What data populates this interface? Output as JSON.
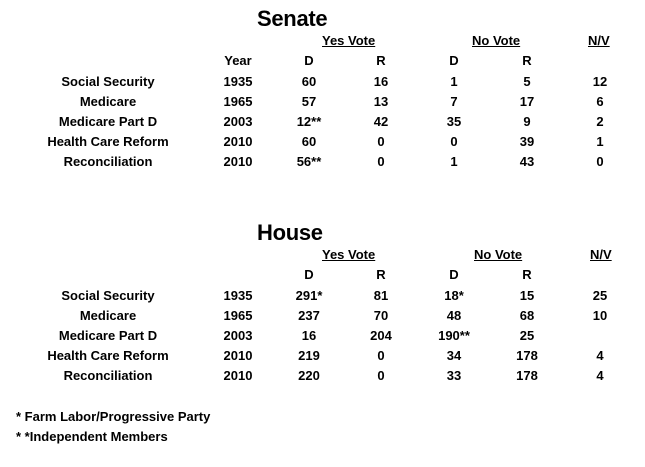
{
  "senate": {
    "title": "Senate",
    "group_yes": "Yes Vote",
    "group_no": "No Vote",
    "group_nv": "N/V",
    "year_label": "Year",
    "sub_yes_d": "D",
    "sub_yes_r": "R",
    "sub_no_d": "D",
    "sub_no_r": "R",
    "rows": [
      {
        "label": "Social Security",
        "year": "1935",
        "yes_d": "60",
        "yes_r": "16",
        "no_d": "1",
        "no_r": "5",
        "nv": "12"
      },
      {
        "label": "Medicare",
        "year": "1965",
        "yes_d": "57",
        "yes_r": "13",
        "no_d": "7",
        "no_r": "17",
        "nv": "6"
      },
      {
        "label": "Medicare Part D",
        "year": "2003",
        "yes_d": "12**",
        "yes_r": "42",
        "no_d": "35",
        "no_r": "9",
        "nv": "2"
      },
      {
        "label": "Health Care Reform",
        "year": "2010",
        "yes_d": "60",
        "yes_r": "0",
        "no_d": "0",
        "no_r": "39",
        "nv": "1"
      },
      {
        "label": "Reconciliation",
        "year": "2010",
        "yes_d": "56**",
        "yes_r": "0",
        "no_d": "1",
        "no_r": "43",
        "nv": "0"
      }
    ]
  },
  "house": {
    "title": "House",
    "group_yes": "Yes Vote",
    "group_no": "No Vote",
    "group_nv": "N/V",
    "sub_yes_d": "D",
    "sub_yes_r": "R",
    "sub_no_d": "D",
    "sub_no_r": "R",
    "rows": [
      {
        "label": "Social Security",
        "year": "1935",
        "yes_d": "291*",
        "yes_r": "81",
        "no_d": "18*",
        "no_r": "15",
        "nv": "25"
      },
      {
        "label": "Medicare",
        "year": "1965",
        "yes_d": "237",
        "yes_r": "70",
        "no_d": "48",
        "no_r": "68",
        "nv": "10"
      },
      {
        "label": "Medicare Part D",
        "year": "2003",
        "yes_d": "16",
        "yes_r": "204",
        "no_d": "190**",
        "no_r": "25",
        "nv": ""
      },
      {
        "label": "Health Care Reform",
        "year": "2010",
        "yes_d": "219",
        "yes_r": "0",
        "no_d": "34",
        "no_r": "178",
        "nv": "4"
      },
      {
        "label": "Reconciliation",
        "year": "2010",
        "yes_d": "220",
        "yes_r": "0",
        "no_d": "33",
        "no_r": "178",
        "nv": "4"
      }
    ]
  },
  "footnotes": [
    "* Farm Labor/Progressive Party",
    "* *Independent Members"
  ]
}
